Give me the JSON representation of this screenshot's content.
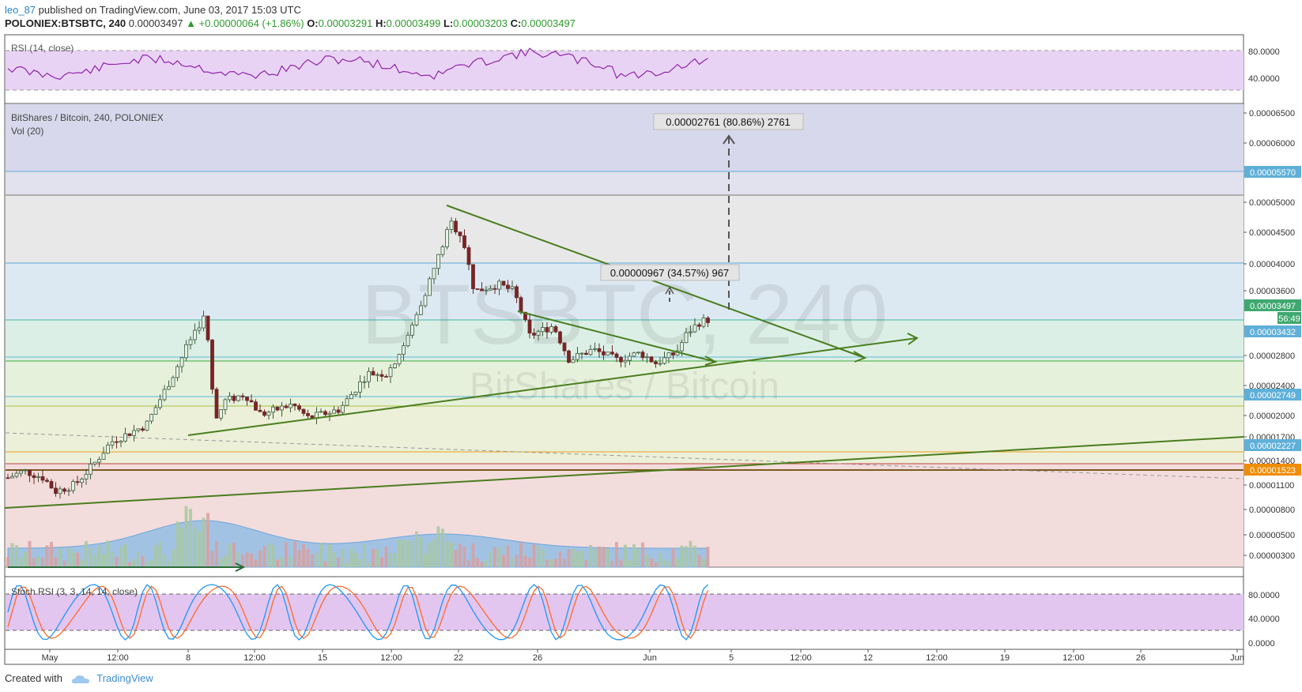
{
  "header": {
    "user": "leo_87",
    "published": " published on TradingView.com, June 03, 2017 15:03 UTC",
    "symbol": "POLONIEX:BTSBTC, 240",
    "last": "0.00003497",
    "change": "▲ +0.00000064 (+1.86%)",
    "o_label": "O:",
    "o_val": "0.00003291",
    "h_label": "H:",
    "h_val": "0.00003499",
    "l_label": "L:",
    "l_val": "0.00003203",
    "c_label": "C:",
    "c_val": "0.00003497"
  },
  "rsi": {
    "title": "RSI (14, close)",
    "ticks": [
      "80.0000",
      "40.0000"
    ]
  },
  "main": {
    "title": "BitShares / Bitcoin, 240, POLONIEX",
    "vol": "Vol (20)",
    "watermark_big": "BTSBTC, 240",
    "watermark_small": "BitShares / Bitcoin",
    "measure_big": "0.00002761 (80.86%) 2761",
    "measure_small": "0.00000967 (34.57%) 967"
  },
  "stoch": {
    "title": "Stoch RSI (3, 3, 14, 14, close)",
    "ticks": [
      "80.0000",
      "40.0000",
      "0.0000"
    ]
  },
  "footer": {
    "created": "Created with",
    "brand": "TradingView"
  },
  "colors": {
    "green_line": "#4a7d1e",
    "up": "#2e9a2e",
    "rsi": "#8e24aa",
    "stoch_k": "#2196f3",
    "stoch_d": "#ff6a2a"
  },
  "chart_data": [
    {
      "type": "candlestick",
      "title": "BitShares / Bitcoin, 240, POLONIEX",
      "x_ticks": [
        "May",
        "12:00",
        "8",
        "12:00",
        "15",
        "12:00",
        "22",
        "26",
        "Jun",
        "5",
        "12:00",
        "12",
        "12:00",
        "19",
        "12:00",
        "26",
        "Jun"
      ],
      "y_ticks": [
        "0.00006500",
        "0.00006000",
        "0.00005000",
        "0.00004500",
        "0.00004000",
        "0.00003600",
        "0.00002800",
        "0.00002400",
        "0.00002000",
        "0.00001700",
        "0.00001400",
        "0.00001100",
        "0.00000800",
        "0.00000500",
        "0.00000300"
      ],
      "price_tags": [
        {
          "value": "0.00005570",
          "color": "#5fb0d8"
        },
        {
          "value": "0.00003497",
          "color": "#3fa870"
        },
        {
          "value": "56:49",
          "color": "#3fa870"
        },
        {
          "value": "0.00003432",
          "color": "#5fb0d8"
        },
        {
          "value": "0.00002749",
          "color": "#5fb0d8"
        },
        {
          "value": "0.00002227",
          "color": "#5fb0d8"
        },
        {
          "value": "0.00001523",
          "color": "#f08c00"
        }
      ],
      "ylim": [
        2e-06,
        6.8e-06
      ],
      "last_close": 3.497e-05
    },
    {
      "type": "line",
      "title": "RSI (14, close)",
      "ylim": [
        20,
        100
      ],
      "y_ticks": [
        "80.0000",
        "40.0000"
      ]
    },
    {
      "type": "line",
      "title": "Stoch RSI (3, 3, 14, 14, close)",
      "ylim": [
        -5,
        105
      ],
      "y_ticks": [
        "80.0000",
        "40.0000",
        "0.0000"
      ],
      "series": [
        {
          "name": "%K"
        },
        {
          "name": "%D"
        }
      ]
    }
  ]
}
